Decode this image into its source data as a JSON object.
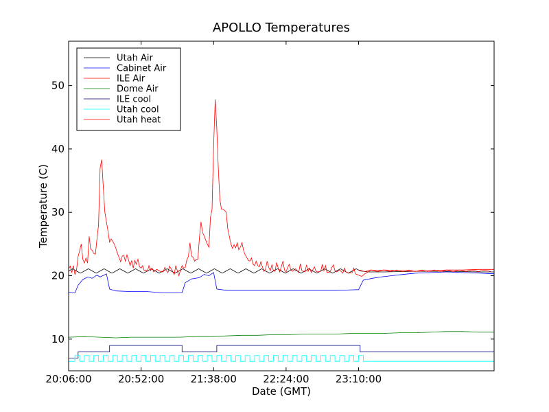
{
  "chart_data": {
    "type": "line",
    "title": "APOLLO Temperatures",
    "xlabel": "Date (GMT)",
    "ylabel": "Temperature (C)",
    "xlim": [
      0,
      270
    ],
    "ylim": [
      5,
      57
    ],
    "x_ticks": [
      {
        "value": 0,
        "label": "20:06:00"
      },
      {
        "value": 46,
        "label": "20:52:00"
      },
      {
        "value": 92,
        "label": "21:38:00"
      },
      {
        "value": 138,
        "label": "22:24:00"
      },
      {
        "value": 184,
        "label": "23:10:00"
      }
    ],
    "y_ticks": [
      10,
      20,
      30,
      40,
      50
    ],
    "x_unit": "minutes since 20:06:00",
    "legend_position": "top-left",
    "series": [
      {
        "name": "Utah Air",
        "color": "#000000",
        "type": "utah_air"
      },
      {
        "name": "Cabinet Air",
        "color": "#0000ff",
        "points": [
          [
            0,
            17.4
          ],
          [
            4,
            17.3
          ],
          [
            6,
            18.5
          ],
          [
            9,
            19.4
          ],
          [
            12,
            19.8
          ],
          [
            15,
            19.6
          ],
          [
            18,
            20.1
          ],
          [
            20,
            19.8
          ],
          [
            24,
            20.3
          ],
          [
            26,
            17.9
          ],
          [
            30,
            17.6
          ],
          [
            40,
            17.5
          ],
          [
            50,
            17.5
          ],
          [
            60,
            17.3
          ],
          [
            72,
            17.3
          ],
          [
            74,
            18.9
          ],
          [
            78,
            19.5
          ],
          [
            83,
            19.7
          ],
          [
            86,
            20.2
          ],
          [
            89,
            20.0
          ],
          [
            92,
            20.5
          ],
          [
            94,
            17.9
          ],
          [
            100,
            17.7
          ],
          [
            120,
            17.7
          ],
          [
            150,
            17.7
          ],
          [
            170,
            17.7
          ],
          [
            184,
            17.8
          ],
          [
            187,
            19.3
          ],
          [
            193,
            19.6
          ],
          [
            198,
            19.8
          ],
          [
            205,
            20.0
          ],
          [
            212,
            20.2
          ],
          [
            220,
            20.4
          ],
          [
            230,
            20.5
          ],
          [
            240,
            20.6
          ],
          [
            250,
            20.5
          ],
          [
            262,
            20.4
          ],
          [
            270,
            20.3
          ]
        ]
      },
      {
        "name": "ILE Air",
        "color": "#ff0000",
        "points": [
          [
            0,
            21.1
          ],
          [
            1,
            21.5
          ],
          [
            2,
            20.5
          ],
          [
            3,
            21.6
          ],
          [
            4,
            20.2
          ],
          [
            5,
            20.9
          ],
          [
            6,
            23.0
          ],
          [
            8,
            25.0
          ],
          [
            9,
            22.6
          ],
          [
            10,
            22.0
          ],
          [
            11,
            22.8
          ],
          [
            12,
            22.0
          ],
          [
            13,
            26.2
          ],
          [
            14,
            24.2
          ],
          [
            15,
            24.0
          ],
          [
            16,
            23.5
          ],
          [
            17,
            23.4
          ],
          [
            18,
            25.8
          ],
          [
            19,
            28.0
          ],
          [
            20,
            37.0
          ],
          [
            21,
            38.3
          ],
          [
            22,
            34.0
          ],
          [
            23,
            30.0
          ],
          [
            24,
            28.5
          ],
          [
            25,
            27.0
          ],
          [
            26,
            25.3
          ],
          [
            27,
            25.8
          ],
          [
            28,
            25.4
          ],
          [
            29,
            25.0
          ],
          [
            30,
            24.3
          ],
          [
            31,
            23.5
          ],
          [
            32,
            22.9
          ],
          [
            33,
            22.2
          ],
          [
            34,
            23.1
          ],
          [
            35,
            23.2
          ],
          [
            36,
            22.3
          ],
          [
            37,
            23.3
          ],
          [
            38,
            22.5
          ],
          [
            39,
            21.6
          ],
          [
            40,
            22.4
          ],
          [
            41,
            21.2
          ],
          [
            42,
            22.4
          ],
          [
            43,
            21.8
          ],
          [
            44,
            22.6
          ],
          [
            45,
            21.4
          ],
          [
            46,
            21.2
          ],
          [
            47,
            21.6
          ],
          [
            48,
            20.8
          ],
          [
            49,
            20.9
          ],
          [
            50,
            20.7
          ],
          [
            51,
            21.6
          ],
          [
            52,
            20.8
          ],
          [
            53,
            21.2
          ],
          [
            54,
            20.6
          ],
          [
            56,
            21.0
          ],
          [
            58,
            20.7
          ],
          [
            60,
            20.6
          ],
          [
            61,
            21.3
          ],
          [
            62,
            20.8
          ],
          [
            63,
            20.5
          ],
          [
            64,
            21.5
          ],
          [
            66,
            20.7
          ],
          [
            67,
            20.2
          ],
          [
            68,
            21.6
          ],
          [
            69,
            20.8
          ],
          [
            70,
            20.0
          ],
          [
            71,
            20.9
          ],
          [
            72,
            21.6
          ],
          [
            73,
            21.2
          ],
          [
            74,
            21.3
          ],
          [
            75,
            22.5
          ],
          [
            76,
            23.0
          ],
          [
            77,
            25.2
          ],
          [
            78,
            23.1
          ],
          [
            79,
            22.9
          ],
          [
            80,
            22.3
          ],
          [
            81,
            22.6
          ],
          [
            82,
            22.6
          ],
          [
            83,
            26.0
          ],
          [
            84,
            28.5
          ],
          [
            85,
            26.8
          ],
          [
            86,
            26.3
          ],
          [
            87,
            25.6
          ],
          [
            88,
            25.0
          ],
          [
            89,
            24.5
          ],
          [
            90,
            29.2
          ],
          [
            91,
            30.5
          ],
          [
            92,
            40.5
          ],
          [
            93,
            47.8
          ],
          [
            94,
            43.2
          ],
          [
            95,
            37.0
          ],
          [
            96,
            32.0
          ],
          [
            97,
            30.5
          ],
          [
            98,
            30.5
          ],
          [
            99,
            30.3
          ],
          [
            100,
            30.0
          ],
          [
            101,
            27.4
          ],
          [
            102,
            26.2
          ],
          [
            103,
            25.0
          ],
          [
            104,
            24.3
          ],
          [
            105,
            24.9
          ],
          [
            106,
            24.4
          ],
          [
            107,
            25.2
          ],
          [
            108,
            24.1
          ],
          [
            109,
            24.5
          ],
          [
            110,
            25.2
          ],
          [
            111,
            24.0
          ],
          [
            112,
            23.3
          ],
          [
            113,
            22.9
          ],
          [
            114,
            22.4
          ],
          [
            115,
            22.3
          ],
          [
            116,
            22.8
          ],
          [
            117,
            21.8
          ],
          [
            118,
            21.6
          ],
          [
            119,
            22.3
          ],
          [
            120,
            21.6
          ],
          [
            121,
            21.4
          ],
          [
            122,
            22.2
          ],
          [
            123,
            21.4
          ],
          [
            124,
            20.7
          ],
          [
            125,
            21.1
          ],
          [
            126,
            22.3
          ],
          [
            127,
            21.3
          ],
          [
            128,
            20.8
          ],
          [
            129,
            21.7
          ],
          [
            130,
            20.8
          ],
          [
            131,
            20.7
          ],
          [
            132,
            22.1
          ],
          [
            133,
            21.2
          ],
          [
            134,
            20.6
          ],
          [
            136,
            22.3
          ],
          [
            137,
            20.9
          ],
          [
            138,
            20.6
          ],
          [
            139,
            21.3
          ],
          [
            140,
            21.8
          ],
          [
            141,
            20.9
          ],
          [
            142,
            20.7
          ],
          [
            144,
            21.1
          ],
          [
            146,
            20.5
          ],
          [
            147,
            21.9
          ],
          [
            148,
            20.8
          ],
          [
            150,
            20.6
          ],
          [
            151,
            21.7
          ],
          [
            152,
            20.7
          ],
          [
            153,
            21.2
          ],
          [
            154,
            20.5
          ],
          [
            156,
            21.4
          ],
          [
            157,
            20.7
          ],
          [
            158,
            20.6
          ],
          [
            160,
            20.7
          ],
          [
            161,
            21.8
          ],
          [
            162,
            20.8
          ],
          [
            163,
            21.6
          ],
          [
            164,
            20.5
          ],
          [
            166,
            20.6
          ],
          [
            167,
            21.3
          ],
          [
            168,
            21.7
          ],
          [
            169,
            20.8
          ],
          [
            170,
            20.6
          ],
          [
            172,
            20.9
          ],
          [
            174,
            20.4
          ],
          [
            175,
            21.2
          ],
          [
            176,
            20.6
          ],
          [
            178,
            20.4
          ],
          [
            180,
            20.5
          ],
          [
            181,
            21.2
          ],
          [
            182,
            20.3
          ],
          [
            184,
            20.1
          ],
          [
            186,
            19.9
          ],
          [
            188,
            20.3
          ],
          [
            190,
            20.6
          ],
          [
            192,
            20.9
          ],
          [
            196,
            20.8
          ],
          [
            200,
            20.9
          ],
          [
            210,
            20.8
          ],
          [
            220,
            20.7
          ],
          [
            230,
            20.8
          ],
          [
            240,
            20.9
          ],
          [
            250,
            20.9
          ],
          [
            260,
            21.0
          ],
          [
            270,
            21.0
          ]
        ]
      },
      {
        "name": "Dome Air",
        "color": "#008000",
        "points": [
          [
            0,
            10.3
          ],
          [
            10,
            10.4
          ],
          [
            20,
            10.3
          ],
          [
            30,
            10.2
          ],
          [
            40,
            10.3
          ],
          [
            50,
            10.3
          ],
          [
            60,
            10.3
          ],
          [
            70,
            10.3
          ],
          [
            80,
            10.4
          ],
          [
            90,
            10.4
          ],
          [
            100,
            10.5
          ],
          [
            110,
            10.6
          ],
          [
            120,
            10.6
          ],
          [
            130,
            10.7
          ],
          [
            140,
            10.7
          ],
          [
            150,
            10.8
          ],
          [
            160,
            10.8
          ],
          [
            170,
            10.8
          ],
          [
            180,
            10.9
          ],
          [
            190,
            10.9
          ],
          [
            200,
            10.9
          ],
          [
            210,
            11.0
          ],
          [
            220,
            11.0
          ],
          [
            230,
            11.1
          ],
          [
            240,
            11.2
          ],
          [
            250,
            11.2
          ],
          [
            260,
            11.1
          ],
          [
            270,
            11.1
          ]
        ]
      },
      {
        "name": "ILE cool",
        "color": "#000080",
        "points": [
          [
            0,
            7.0
          ],
          [
            6,
            7.0
          ],
          [
            6,
            8.0
          ],
          [
            26,
            8.0
          ],
          [
            26,
            9.0
          ],
          [
            72,
            9.0
          ],
          [
            72,
            8.0
          ],
          [
            94,
            8.0
          ],
          [
            94,
            9.0
          ],
          [
            185,
            9.0
          ],
          [
            185,
            8.0
          ],
          [
            270,
            8.0
          ]
        ]
      },
      {
        "name": "Utah cool",
        "color": "#00ffff",
        "type": "utah_cool"
      },
      {
        "name": "Utah heat",
        "color": "#ff0000",
        "type": "utah_heat"
      }
    ]
  }
}
